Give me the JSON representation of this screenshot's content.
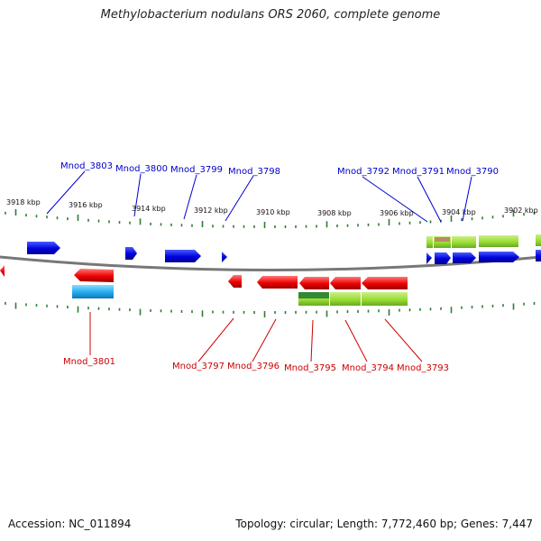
{
  "title": "Methylobacterium nodulans ORS 2060, complete genome",
  "footer": {
    "accession": "Accession: NC_011894",
    "stats": "Topology: circular; Length: 7,772,460 bp; Genes: 7,447"
  },
  "colors": {
    "forward_gene": "#0000dd",
    "reverse_gene": "#ee0000",
    "cyan_feature": "#22aaee",
    "green_feature": "#99dd33",
    "dark_green_feature": "#338833",
    "backbone": "#777777",
    "tick": "#2e7d32",
    "forward_label": "#0000cc",
    "reverse_label": "#cc0000"
  },
  "scale_labels": [
    "3918 kbp",
    "3916 kbp",
    "3914 kbp",
    "3912 kbp",
    "3910 kbp",
    "3908 kbp",
    "3906 kbp",
    "3904 kbp",
    "3902 kbp"
  ],
  "forward_genes": [
    "Mnod_3803",
    "Mnod_3800",
    "Mnod_3799",
    "Mnod_3798",
    "Mnod_3792",
    "Mnod_3791",
    "Mnod_3790"
  ],
  "reverse_genes": [
    "Mnod_3801",
    "Mnod_3797",
    "Mnod_3796",
    "Mnod_3795",
    "Mnod_3794",
    "Mnod_3793"
  ]
}
